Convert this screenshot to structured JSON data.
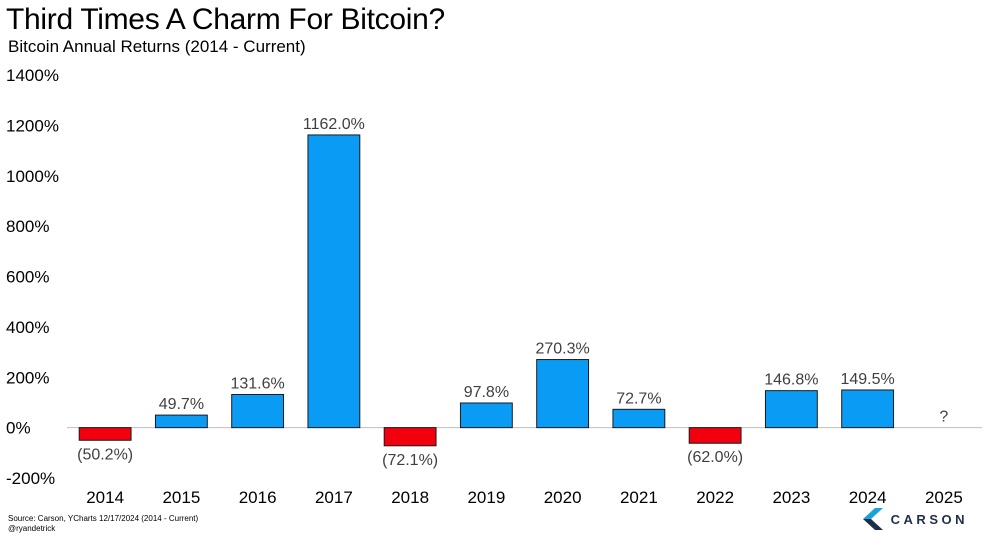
{
  "title": "Third Times A Charm For Bitcoin?",
  "subtitle": "Bitcoin Annual Returns (2014 - Current)",
  "source": "Source: Carson, YCharts 12/17/2024 (2014 - Current)",
  "handle": "@ryandetrick",
  "brand": "CARSON",
  "colors": {
    "positive": "#0a9cf5",
    "negative": "#f2000d",
    "bar_border": "#1a1a1a",
    "logo_dark": "#1e2f4a",
    "logo_light": "#1aa3d9"
  },
  "chart_data": {
    "type": "bar",
    "title": "Third Times A Charm For Bitcoin?",
    "xlabel": "",
    "ylabel": "",
    "ylim": [
      -200,
      1400
    ],
    "yticks": [
      -200,
      0,
      200,
      400,
      600,
      800,
      1000,
      1200,
      1400
    ],
    "ytick_labels": [
      "-200%",
      "0%",
      "200%",
      "400%",
      "600%",
      "800%",
      "1000%",
      "1200%",
      "1400%"
    ],
    "categories": [
      "2014",
      "2015",
      "2016",
      "2017",
      "2018",
      "2019",
      "2020",
      "2021",
      "2022",
      "2023",
      "2024",
      "2025"
    ],
    "values": [
      -50.2,
      49.7,
      131.6,
      1162.0,
      -72.1,
      97.8,
      270.3,
      72.7,
      -62.0,
      146.8,
      149.5,
      null
    ],
    "data_labels": [
      "(50.2%)",
      "49.7%",
      "131.6%",
      "1162.0%",
      "(72.1%)",
      "97.8%",
      "270.3%",
      "72.7%",
      "(62.0%)",
      "146.8%",
      "149.5%",
      "?"
    ]
  }
}
